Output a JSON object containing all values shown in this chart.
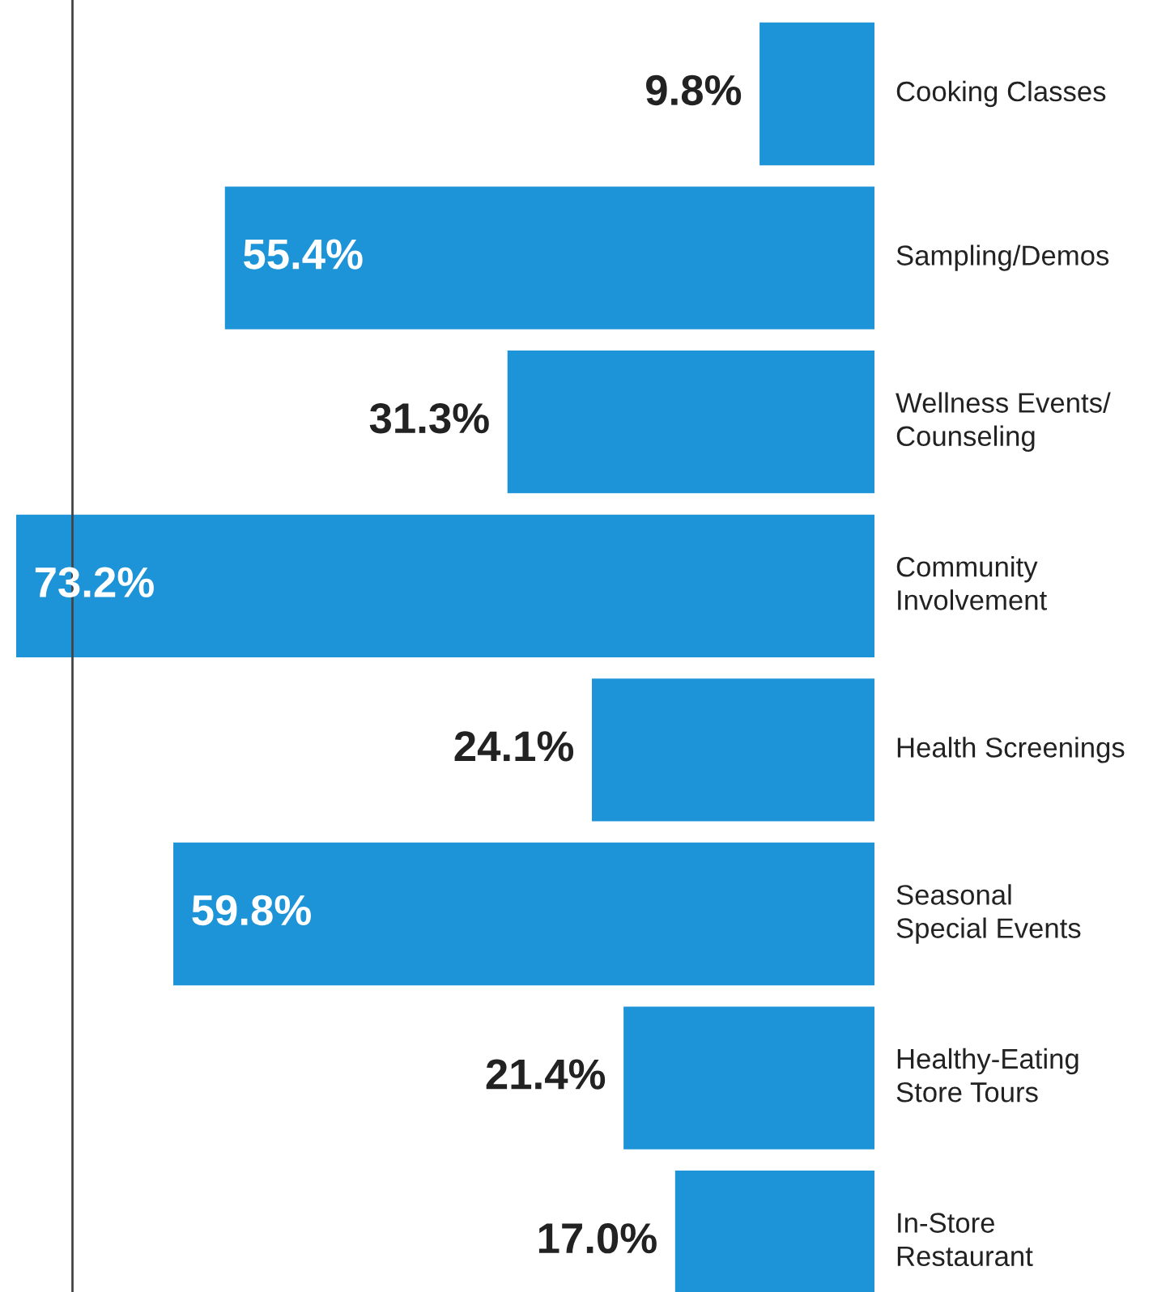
{
  "chart_data": {
    "type": "bar",
    "orientation": "horizontal",
    "categories": [
      "Cooking Classes",
      "Sampling/Demos",
      "Wellness Events/\nCounseling",
      "Community\nInvolvement",
      "Health Screenings",
      "Seasonal\nSpecial Events",
      "Healthy-Eating\nStore Tours",
      "In-Store\nRestaurant"
    ],
    "values": [
      9.8,
      55.4,
      31.3,
      73.2,
      24.1,
      59.8,
      21.4,
      17.0
    ],
    "value_labels": [
      "9.8%",
      "55.4%",
      "31.3%",
      "73.2%",
      "24.1%",
      "59.8%",
      "21.4%",
      "17.0%"
    ],
    "color": "#1e94d8",
    "ref_lines": [
      {
        "axis": "x",
        "value": 68.4,
        "color": "#444444"
      }
    ]
  }
}
